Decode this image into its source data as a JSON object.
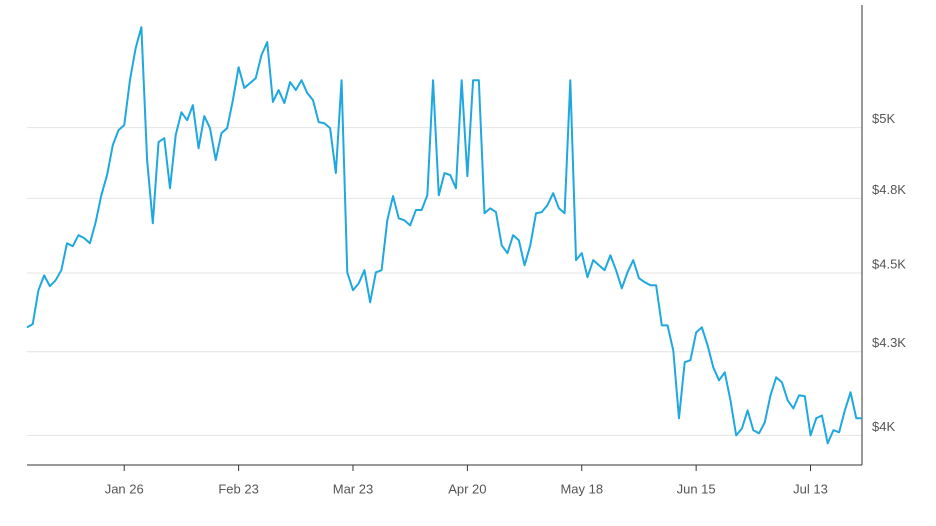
{
  "chart_data": {
    "type": "line",
    "categories": [
      null,
      null,
      null,
      null,
      null,
      null,
      null,
      null,
      null,
      null,
      null,
      null,
      null,
      null,
      null,
      null,
      null,
      "Jan 26",
      null,
      null,
      null,
      null,
      null,
      null,
      null,
      null,
      null,
      null,
      null,
      null,
      null,
      null,
      null,
      null,
      null,
      null,
      null,
      "Feb 23",
      null,
      null,
      null,
      null,
      null,
      null,
      null,
      null,
      null,
      null,
      null,
      null,
      null,
      null,
      null,
      null,
      null,
      null,
      null,
      "Mar 23",
      null,
      null,
      null,
      null,
      null,
      null,
      null,
      null,
      null,
      null,
      null,
      null,
      null,
      null,
      null,
      null,
      null,
      null,
      null,
      "Apr 20",
      null,
      null,
      null,
      null,
      null,
      null,
      null,
      null,
      null,
      null,
      null,
      null,
      null,
      null,
      null,
      null,
      null,
      null,
      null,
      "May 18",
      null,
      null,
      null,
      null,
      null,
      null,
      null,
      null,
      null,
      null,
      null,
      null,
      null,
      null,
      null,
      null,
      null,
      null,
      null,
      "Jun 15",
      null,
      null,
      null,
      null,
      null,
      null,
      null,
      null,
      null,
      null,
      null,
      null,
      null,
      null,
      null,
      null,
      null,
      null,
      null,
      "Jul 13",
      null,
      null,
      null,
      null,
      null,
      null,
      null,
      null,
      null
    ],
    "values": [
      4326,
      4336,
      4444,
      4492,
      4457,
      4476,
      4509,
      4598,
      4588,
      4625,
      4615,
      4598,
      4668,
      4761,
      4831,
      4937,
      4991,
      5009,
      5175,
      5297,
      5378,
      4884,
      4665,
      4948,
      4962,
      4785,
      4973,
      5056,
      5027,
      5082,
      4926,
      5042,
      4998,
      4884,
      4980,
      4998,
      5101,
      5224,
      5146,
      5164,
      5183,
      5270,
      5320,
      5094,
      5138,
      5090,
      5168,
      5138,
      5175,
      5127,
      5101,
      5020,
      5016,
      4998,
      4838,
      5175,
      4502,
      4444,
      4466,
      4509,
      4405,
      4502,
      4509,
      4675,
      4758,
      4682,
      4675,
      4658,
      4710,
      4710,
      4761,
      5175,
      4761,
      4838,
      4831,
      4785,
      5175,
      4827,
      5175,
      5175,
      4699,
      4716,
      4703,
      4591,
      4565,
      4625,
      4608,
      4525,
      4591,
      4699,
      4703,
      4727,
      4768,
      4716,
      4699,
      5175,
      4542,
      4565,
      4486,
      4542,
      4525,
      4509,
      4558,
      4509,
      4450,
      4502,
      4542,
      4483,
      4470,
      4460,
      4460,
      4332,
      4332,
      4254,
      4050,
      4218,
      4224,
      4310,
      4326,
      4270,
      4202,
      4163,
      4187,
      4103,
      4000,
      4020,
      4073,
      4015,
      4006,
      4038,
      4118,
      4172,
      4157,
      4103,
      4079,
      4118,
      4115,
      4000,
      4050,
      4058,
      3977,
      4015,
      4009,
      4073,
      4127,
      4050,
      4050
    ],
    "color": "#1fa8e0",
    "ylim": [
      3915,
      5465
    ],
    "yticks": [
      {
        "value": 4000,
        "label": "$4K"
      },
      {
        "value": 4250,
        "label": "$4.3K"
      },
      {
        "value": 4500,
        "label": "$4.5K"
      },
      {
        "value": 4750,
        "label": "$4.8K"
      },
      {
        "value": 5000,
        "label": "$5K"
      }
    ],
    "log_scale": true,
    "grid": true
  }
}
